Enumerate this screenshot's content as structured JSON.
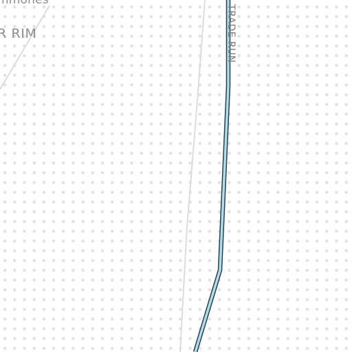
{
  "map": {
    "colors": {
      "background": "#ffffff",
      "dot_pattern": "#e3e3dc",
      "trail_fill": "#a9dff1",
      "trail_casing": "#2f3f45",
      "path_line": "#dcdcdc",
      "label_text": "#8c8c8c"
    },
    "labels": {
      "partial_top": "mmones",
      "area_name": "R RIM",
      "trail_name": "TRADE RUN"
    }
  }
}
